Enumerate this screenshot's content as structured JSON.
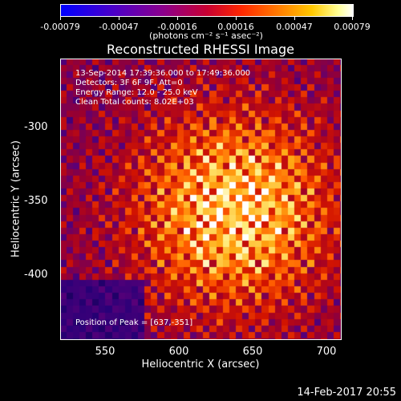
{
  "colorbar": {
    "tick_labels": [
      "-0.00079",
      "-0.00047",
      "-0.00016",
      "0.00016",
      "0.00047",
      "0.00079"
    ],
    "unit": "(photons cm⁻² s⁻¹ asec⁻²)",
    "colors": [
      "#0000ff",
      "#8c008c",
      "#c80032",
      "#ff2800",
      "#ffc800",
      "#ffffff"
    ]
  },
  "chart_data": {
    "type": "heatmap",
    "title": "Reconstructed RHESSI Image",
    "xlabel": "Heliocentric X (arcsec)",
    "ylabel": "Heliocentric Y (arcsec)",
    "xlim": [
      521,
      711
    ],
    "ylim": [
      -441,
      -251
    ],
    "x_ticks": [
      550,
      600,
      650,
      700
    ],
    "y_ticks": [
      -300,
      -350,
      -400
    ],
    "x_tick_labels": [
      "550",
      "600",
      "650",
      "700"
    ],
    "y_tick_labels": [
      "-300",
      "-350",
      "-400"
    ],
    "value_range": [
      -0.00079,
      0.00079
    ],
    "peak": [
      637,
      -351
    ],
    "annotations": [
      "13-Sep-2014 17:39:36.000 to 17:49:36.000",
      "Detectors: 3F 6F 9F, Att=0",
      "Energy Range: 12.0 - 25.0 keV",
      "Clean    Total counts: 8.02E+03"
    ],
    "peak_label": "Position of Peak = [637,-351]"
  },
  "timestamp": "14-Feb-2017 20:55"
}
